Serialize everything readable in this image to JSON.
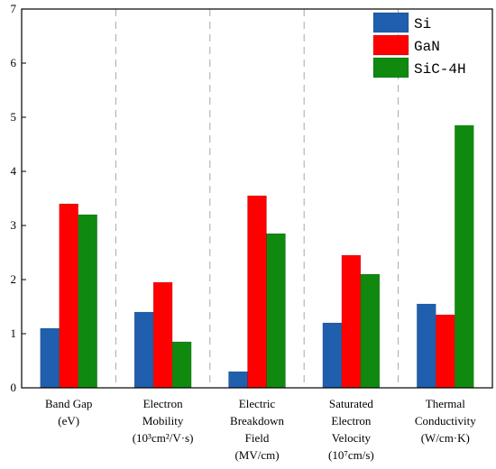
{
  "chart_data": {
    "type": "bar",
    "categories": [
      [
        "Band Gap",
        "(eV)"
      ],
      [
        "Electron",
        "Mobility",
        "(10³cm²/V·s)"
      ],
      [
        "Electric",
        "Breakdown",
        "Field",
        "(MV/cm)"
      ],
      [
        "Saturated",
        "Electron",
        "Velocity",
        "(10⁷cm/s)"
      ],
      [
        "Thermal",
        "Conductivity",
        "(W/cm·K)"
      ]
    ],
    "series": [
      {
        "name": "Si",
        "color": "#1f5fae",
        "values": [
          1.1,
          1.4,
          0.3,
          1.2,
          1.55
        ]
      },
      {
        "name": "GaN",
        "color": "#ff0000",
        "values": [
          3.4,
          1.95,
          3.55,
          2.45,
          1.35
        ]
      },
      {
        "name": "SiC-4H",
        "color": "#0f8a0f",
        "values": [
          3.2,
          0.85,
          2.85,
          2.1,
          4.85
        ]
      }
    ],
    "ylim": [
      0,
      7
    ],
    "yticks": [
      "0",
      "1",
      "2",
      "3",
      "4",
      "5",
      "6",
      "7"
    ],
    "legend_position": "top-right",
    "category_separators": "dashed"
  }
}
